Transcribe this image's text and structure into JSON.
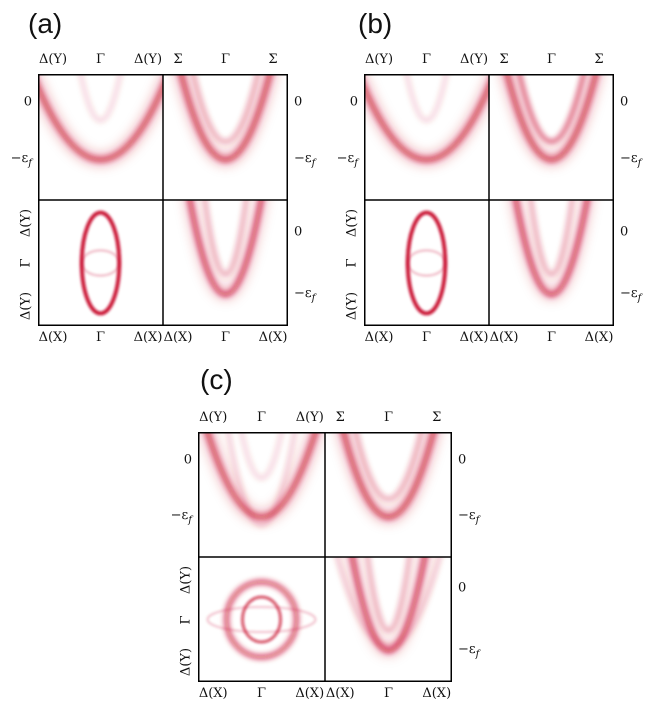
{
  "figure": {
    "panels": [
      {
        "label": "(a)",
        "top_ticks_left": [
          "Δ(Y)",
          "Γ",
          "Δ(Y)"
        ],
        "top_ticks_right": [
          "Σ",
          "Γ",
          "Σ"
        ],
        "bottom_ticks_left": [
          "Δ(X)",
          "Γ",
          "Δ(X)"
        ],
        "bottom_ticks_right": [
          "Δ(X)",
          "Γ",
          "Δ(X)"
        ],
        "left_energy_ticks": [
          "0",
          "−ε_f"
        ],
        "right_energy_ticks_top": [
          "0",
          "−ε_f"
        ],
        "right_energy_ticks_bottom": [
          "0",
          "−ε_f"
        ],
        "left_k_ticks_bottom": [
          "Δ(Y)",
          "Γ",
          "Δ(Y)"
        ]
      },
      {
        "label": "(b)",
        "top_ticks_left": [
          "Δ(Y)",
          "Γ",
          "Δ(Y)"
        ],
        "top_ticks_right": [
          "Σ",
          "Γ",
          "Σ"
        ],
        "bottom_ticks_left": [
          "Δ(X)",
          "Γ",
          "Δ(X)"
        ],
        "bottom_ticks_right": [
          "Δ(X)",
          "Γ",
          "Δ(X)"
        ],
        "left_energy_ticks": [
          "0",
          "−ε_f"
        ],
        "right_energy_ticks_top": [
          "0",
          "−ε_f"
        ],
        "right_energy_ticks_bottom": [
          "0",
          "−ε_f"
        ],
        "left_k_ticks_bottom": [
          "Δ(Y)",
          "Γ",
          "Δ(Y)"
        ]
      },
      {
        "label": "(c)",
        "top_ticks_left": [
          "Δ(Y)",
          "Γ",
          "Δ(Y)"
        ],
        "top_ticks_right": [
          "Σ",
          "Γ",
          "Σ"
        ],
        "bottom_ticks_left": [
          "Δ(X)",
          "Γ",
          "Δ(X)"
        ],
        "bottom_ticks_right": [
          "Δ(X)",
          "Γ",
          "Δ(X)"
        ],
        "left_energy_ticks": [
          "0",
          "−ε_f"
        ],
        "right_energy_ticks_top": [
          "0",
          "−ε_f"
        ],
        "right_energy_ticks_bottom": [
          "0",
          "−ε_f"
        ],
        "left_k_ticks_bottom": [
          "Δ(Y)",
          "Γ",
          "Δ(Y)"
        ]
      }
    ],
    "colors": {
      "band": "#c8102e",
      "frame": "#000000"
    }
  }
}
